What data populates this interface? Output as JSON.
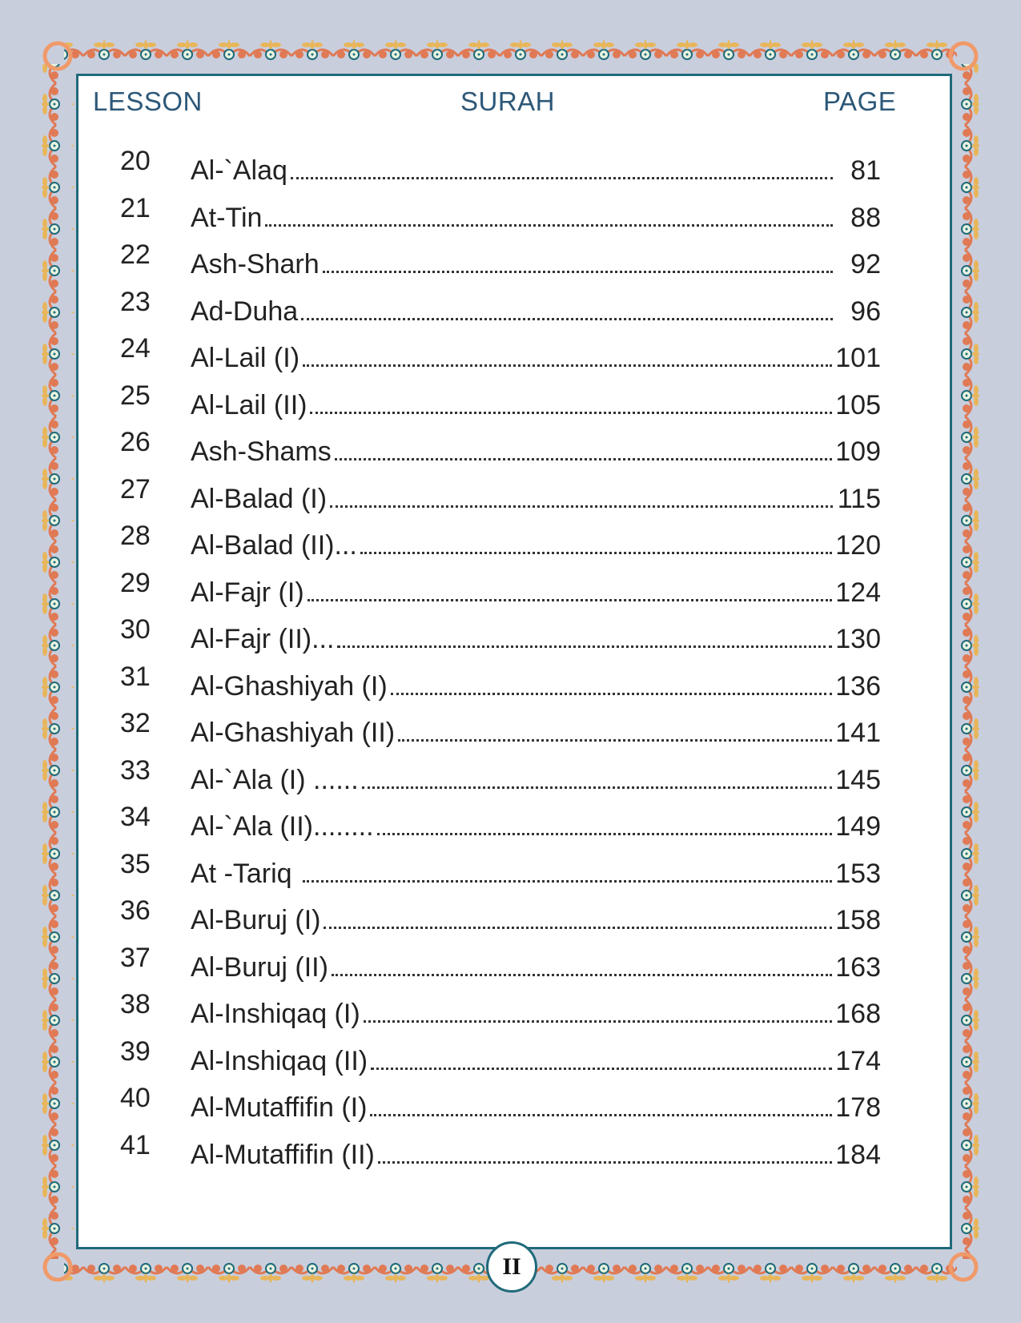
{
  "header": {
    "lesson": "LESSON",
    "surah": "SURAH",
    "page": "PAGE"
  },
  "colors": {
    "background": "#c9cedd",
    "frame": "#1f6a7a",
    "header_text": "#2d5878",
    "ornament_orange": "#e07a55",
    "ornament_gold": "#e8b65a"
  },
  "entries": [
    {
      "lesson": "20",
      "surah": "Al-`Alaq",
      "page": "81"
    },
    {
      "lesson": "21",
      "surah": "At-Tin",
      "page": "88"
    },
    {
      "lesson": "22",
      "surah": "Ash-Sharh",
      "page": "92"
    },
    {
      "lesson": "23",
      "surah": "Ad-Duha",
      "page": "96"
    },
    {
      "lesson": "24",
      "surah": "Al-Lail (I)",
      "page": "101"
    },
    {
      "lesson": "25",
      "surah": "Al-Lail (II)",
      "page": "105"
    },
    {
      "lesson": "26",
      "surah": "Ash-Shams",
      "page": "109"
    },
    {
      "lesson": "27",
      "surah": "Al-Balad (I)",
      "page": "115"
    },
    {
      "lesson": "28",
      "surah": "Al-Balad (II)...",
      "page": "120"
    },
    {
      "lesson": "29",
      "surah": "Al-Fajr (I)",
      "page": "124"
    },
    {
      "lesson": "30",
      "surah": "Al-Fajr (II)...",
      "page": "130"
    },
    {
      "lesson": "31",
      "surah": "Al-Ghashiyah (I)",
      "page": "136"
    },
    {
      "lesson": "32",
      "surah": "Al-Ghashiyah (II)",
      "page": "141"
    },
    {
      "lesson": "33",
      "surah": "Al-`Ala (I) ......",
      "page": "145"
    },
    {
      "lesson": "34",
      "surah": "Al-`Ala (II)........",
      "page": "149"
    },
    {
      "lesson": "35",
      "surah": "At -Tariq ",
      "page": "153"
    },
    {
      "lesson": "36",
      "surah": "Al-Buruj (I)",
      "page": "158"
    },
    {
      "lesson": "37",
      "surah": "Al-Buruj (II)",
      "page": "163"
    },
    {
      "lesson": "38",
      "surah": "Al-Inshiqaq (I)",
      "page": "168"
    },
    {
      "lesson": "39",
      "surah": "Al-Inshiqaq (II)",
      "page": "174"
    },
    {
      "lesson": "40",
      "surah": "Al-Mutaffifin (I)",
      "page": "178"
    },
    {
      "lesson": "41",
      "surah": "Al-Mutaffifin (II)",
      "page": "184"
    }
  ],
  "page_number": "II"
}
